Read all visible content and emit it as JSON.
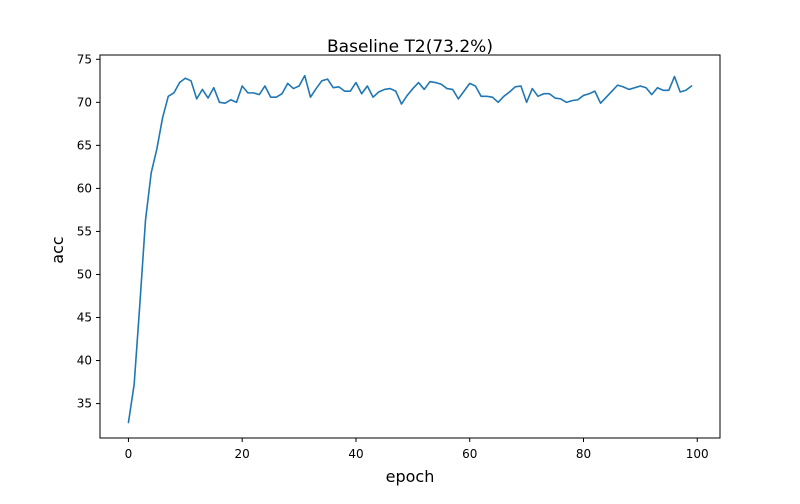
{
  "chart_data": {
    "type": "line",
    "title": "Baseline T2(73.2%)",
    "xlabel": "epoch",
    "ylabel": "acc",
    "xlim": [
      -5,
      104
    ],
    "ylim": [
      31.0,
      75.5
    ],
    "xticks": [
      0,
      20,
      40,
      60,
      80,
      100
    ],
    "yticks": [
      35,
      40,
      45,
      50,
      55,
      60,
      65,
      70,
      75
    ],
    "grid": false,
    "line_color": "#1f77b4",
    "series": [
      {
        "x": [
          0,
          1,
          2,
          3,
          4,
          5,
          6,
          7,
          8,
          9,
          10,
          11,
          12,
          13,
          14,
          15,
          16,
          17,
          18,
          19,
          20,
          21,
          22,
          23,
          24,
          25,
          26,
          27,
          28,
          29,
          30,
          31,
          32,
          33,
          34,
          35,
          36,
          37,
          38,
          39,
          40,
          41,
          42,
          43,
          44,
          45,
          46,
          47,
          48,
          49,
          50,
          51,
          52,
          53,
          54,
          55,
          56,
          57,
          58,
          59,
          60,
          61,
          62,
          63,
          64,
          65,
          66,
          67,
          68,
          69,
          70,
          71,
          72,
          73,
          74,
          75,
          76,
          77,
          78,
          79,
          80,
          81,
          82,
          83,
          84,
          85,
          86,
          87,
          88,
          89,
          90,
          91,
          92,
          93,
          94,
          95,
          96,
          97,
          98,
          99
        ],
        "values": [
          32.8,
          37.2,
          46.5,
          56.3,
          61.8,
          64.6,
          68.2,
          70.7,
          71.1,
          72.3,
          72.8,
          72.5,
          70.4,
          71.5,
          70.5,
          71.7,
          70.0,
          69.9,
          70.3,
          70.0,
          71.9,
          71.1,
          71.1,
          70.9,
          71.9,
          70.6,
          70.6,
          71.0,
          72.2,
          71.6,
          71.9,
          73.1,
          70.6,
          71.6,
          72.5,
          72.7,
          71.7,
          71.8,
          71.3,
          71.3,
          72.3,
          71.0,
          71.9,
          70.6,
          71.2,
          71.5,
          71.6,
          71.3,
          69.8,
          70.8,
          71.6,
          72.3,
          71.5,
          72.4,
          72.3,
          72.1,
          71.6,
          71.5,
          70.4,
          71.3,
          72.2,
          71.9,
          70.7,
          70.7,
          70.6,
          70.0,
          70.7,
          71.2,
          71.8,
          71.9,
          70.0,
          71.6,
          70.7,
          71.0,
          71.0,
          70.5,
          70.4,
          70.0,
          70.2,
          70.3,
          70.8,
          71.0,
          71.3,
          69.9,
          70.6,
          71.3,
          72.0,
          71.8,
          71.5,
          71.7,
          71.9,
          71.7,
          70.9,
          71.7,
          71.4,
          71.4,
          73.0,
          71.2,
          71.4,
          71.9
        ]
      }
    ]
  }
}
